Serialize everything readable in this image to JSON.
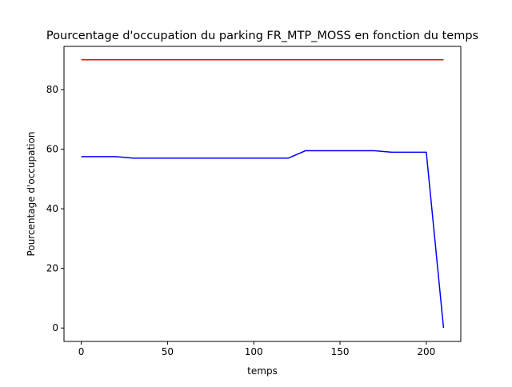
{
  "chart_data": {
    "type": "line",
    "title": "Pourcentage d'occupation du parking FR_MTP_MOSS en fonction du temps",
    "xlabel": "temps",
    "ylabel": "Pourcentage d'occupation",
    "xlim": [
      -10,
      220
    ],
    "ylim": [
      -4.5,
      94.5
    ],
    "xticks": [
      0,
      50,
      100,
      150,
      200
    ],
    "yticks": [
      0,
      20,
      40,
      60,
      80
    ],
    "grid": false,
    "series": [
      {
        "color": "#ff0000",
        "x": [
          0,
          210
        ],
        "y": [
          90,
          90
        ]
      },
      {
        "color": "#0000ff",
        "x": [
          0,
          10,
          20,
          30,
          40,
          50,
          60,
          70,
          80,
          90,
          100,
          110,
          120,
          130,
          140,
          150,
          160,
          170,
          180,
          190,
          200,
          210
        ],
        "y": [
          57.5,
          57.5,
          57.5,
          57.0,
          57.0,
          57.0,
          57.0,
          57.0,
          57.0,
          57.0,
          57.0,
          57.0,
          57.0,
          59.5,
          59.5,
          59.5,
          59.5,
          59.5,
          59.0,
          59.0,
          59.0,
          0.0
        ]
      }
    ]
  }
}
